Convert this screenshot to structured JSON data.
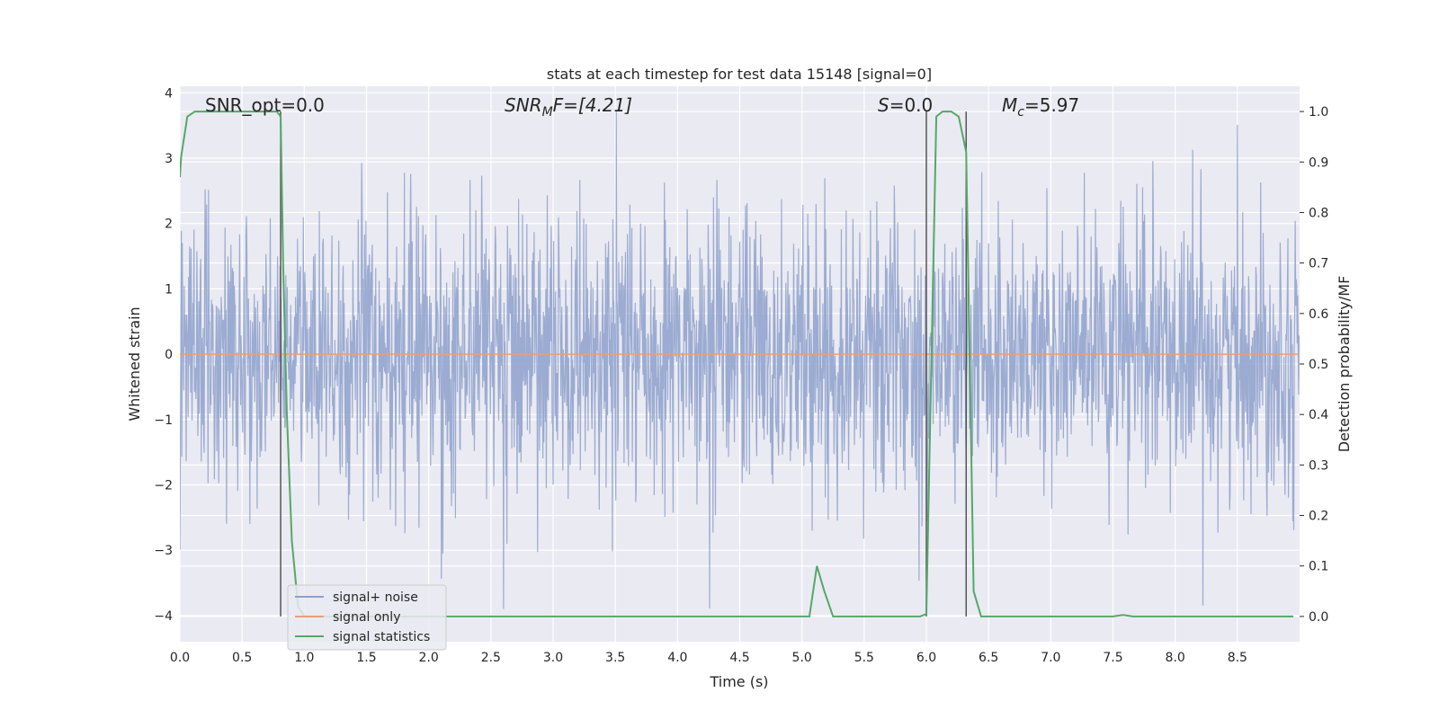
{
  "chart_data": {
    "type": "line",
    "title": "stats at each timestep for test data 15148 [signal=0]",
    "xlabel": "Time (s)",
    "ylabel_left": "Whitened strain",
    "ylabel_right": "Detection probability/MF",
    "xlim": [
      0.0,
      9.0
    ],
    "ylim_left": [
      -4.4,
      4.1
    ],
    "ylim_right": [
      -0.05,
      1.05
    ],
    "x_ticks": [
      "0.0",
      "0.5",
      "1.0",
      "1.5",
      "2.0",
      "2.5",
      "3.0",
      "3.5",
      "4.0",
      "4.5",
      "5.0",
      "5.5",
      "6.0",
      "6.5",
      "7.0",
      "7.5",
      "8.0",
      "8.5"
    ],
    "y_ticks_left": [
      "4",
      "3",
      "2",
      "1",
      "0",
      "−1",
      "−2",
      "−3",
      "−4"
    ],
    "y_ticks_right": [
      "1.0",
      "0.9",
      "0.8",
      "0.7",
      "0.6",
      "0.5",
      "0.4",
      "0.3",
      "0.2",
      "0.1",
      "0.0"
    ],
    "grid": true,
    "legend_position": "bottom-left",
    "annotations": {
      "snr_opt": "SNR_opt=0.0",
      "snr_mf_main": "SNR",
      "snr_mf_sub": "M",
      "snr_mf_rest": "F=[4.21]",
      "s_main": "S",
      "s_rest": "=0.0",
      "mc_main": "M",
      "mc_sub": "c",
      "mc_rest": "=5.97"
    },
    "vertical_lines_x": [
      0.81,
      6.0,
      6.32
    ],
    "series": [
      {
        "name": "signal+ noise",
        "color": "#8da0cb",
        "kind": "noise",
        "sample_rate": 256,
        "duration": 9.0,
        "typical_amplitude": 2.3,
        "peak_amplitude": 3.9
      },
      {
        "name": "signal only",
        "color": "#e5a07a",
        "x": [
          0.0,
          9.0
        ],
        "y": [
          0.0,
          0.0
        ]
      },
      {
        "name": "signal statistics",
        "color": "#55a868",
        "axis": "right",
        "x": [
          0.0,
          0.01,
          0.06,
          0.12,
          0.2,
          0.4,
          0.6,
          0.78,
          0.81,
          0.83,
          0.86,
          0.9,
          0.95,
          1.0,
          1.5,
          2.0,
          3.0,
          4.0,
          5.0,
          5.06,
          5.12,
          5.18,
          5.25,
          5.5,
          5.95,
          6.0,
          6.04,
          6.08,
          6.13,
          6.2,
          6.26,
          6.32,
          6.38,
          6.44,
          7.0,
          7.5,
          7.58,
          7.66,
          8.0,
          8.5,
          8.95
        ],
        "y": [
          0.87,
          0.91,
          0.99,
          1.0,
          1.0,
          1.0,
          1.0,
          1.0,
          0.99,
          0.7,
          0.4,
          0.15,
          0.02,
          0.0,
          0.0,
          0.0,
          0.0,
          0.0,
          0.0,
          0.0,
          0.1,
          0.05,
          0.0,
          0.0,
          0.0,
          0.005,
          0.5,
          0.99,
          1.0,
          1.0,
          0.99,
          0.92,
          0.05,
          0.0,
          0.0,
          0.0,
          0.003,
          0.0,
          0.0,
          0.0,
          0.0
        ]
      }
    ]
  }
}
